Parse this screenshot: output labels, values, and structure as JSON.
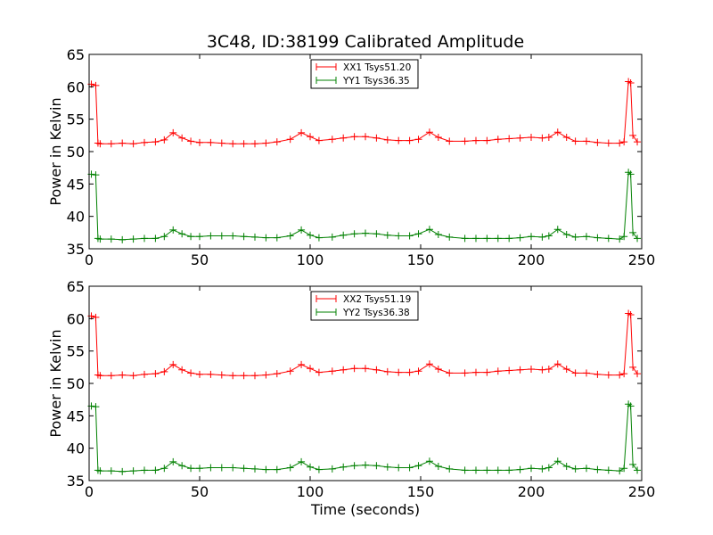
{
  "chart_data": [
    {
      "type": "line",
      "title": "3C48, ID:38199 Calibrated Amplitude",
      "xlabel": "",
      "ylabel": "Power in Kelvin",
      "xlim": [
        0,
        250
      ],
      "ylim": [
        35,
        65
      ],
      "xticks": [
        "0",
        "50",
        "100",
        "150",
        "200",
        "250"
      ],
      "yticks": [
        "35",
        "40",
        "45",
        "50",
        "55",
        "60",
        "65"
      ],
      "grid": false,
      "legend": "top-center",
      "series": [
        {
          "name": "XX1 Tsys51.20",
          "color": "#ff0000",
          "marker": "plus",
          "x": [
            1,
            3,
            4,
            5,
            10,
            15,
            20,
            25,
            30,
            34,
            38,
            42,
            46,
            50,
            55,
            60,
            65,
            70,
            75,
            80,
            85,
            91,
            96,
            100,
            104,
            110,
            115,
            120,
            125,
            130,
            135,
            140,
            145,
            149,
            154,
            158,
            163,
            170,
            175,
            180,
            185,
            190,
            195,
            200,
            205,
            208,
            212,
            216,
            220,
            225,
            230,
            235,
            240,
            242,
            244,
            245,
            246,
            248
          ],
          "y": [
            60.4,
            60.2,
            51.3,
            51.2,
            51.2,
            51.3,
            51.2,
            51.4,
            51.5,
            51.8,
            52.9,
            52.1,
            51.6,
            51.4,
            51.4,
            51.3,
            51.2,
            51.2,
            51.2,
            51.3,
            51.5,
            51.9,
            52.9,
            52.3,
            51.7,
            51.9,
            52.1,
            52.3,
            52.3,
            52.1,
            51.8,
            51.7,
            51.7,
            51.9,
            53.0,
            52.2,
            51.6,
            51.6,
            51.7,
            51.7,
            51.9,
            52.0,
            52.1,
            52.2,
            52.1,
            52.2,
            53.0,
            52.2,
            51.6,
            51.6,
            51.4,
            51.3,
            51.3,
            51.5,
            60.8,
            60.6,
            52.5,
            51.5
          ]
        },
        {
          "name": "YY1 Tsys36.35",
          "color": "#008000",
          "marker": "plus",
          "x": [
            1,
            3,
            4,
            5,
            10,
            15,
            20,
            25,
            30,
            34,
            38,
            42,
            46,
            50,
            55,
            60,
            65,
            70,
            75,
            80,
            85,
            91,
            96,
            100,
            104,
            110,
            115,
            120,
            125,
            130,
            135,
            140,
            145,
            149,
            154,
            158,
            163,
            170,
            175,
            180,
            185,
            190,
            195,
            200,
            205,
            208,
            212,
            216,
            220,
            225,
            230,
            235,
            240,
            242,
            244,
            245,
            246,
            248
          ],
          "y": [
            46.5,
            46.4,
            36.6,
            36.5,
            36.5,
            36.4,
            36.5,
            36.6,
            36.6,
            36.9,
            37.9,
            37.3,
            36.9,
            36.9,
            37.0,
            37.0,
            37.0,
            36.9,
            36.8,
            36.7,
            36.7,
            37.0,
            37.9,
            37.1,
            36.7,
            36.8,
            37.1,
            37.3,
            37.4,
            37.3,
            37.1,
            37.0,
            37.0,
            37.3,
            38.0,
            37.2,
            36.8,
            36.6,
            36.6,
            36.6,
            36.6,
            36.6,
            36.7,
            36.9,
            36.8,
            37.0,
            38.0,
            37.2,
            36.8,
            36.9,
            36.7,
            36.6,
            36.5,
            36.9,
            46.8,
            46.5,
            37.5,
            36.6
          ]
        }
      ]
    },
    {
      "type": "line",
      "title": "",
      "xlabel": "Time (seconds)",
      "ylabel": "Power in Kelvin",
      "xlim": [
        0,
        250
      ],
      "ylim": [
        35,
        65
      ],
      "xticks": [
        "0",
        "50",
        "100",
        "150",
        "200",
        "250"
      ],
      "yticks": [
        "35",
        "40",
        "45",
        "50",
        "55",
        "60",
        "65"
      ],
      "grid": false,
      "legend": "top-center",
      "series": [
        {
          "name": "XX2 Tsys51.19",
          "color": "#ff0000",
          "marker": "plus",
          "x": [
            1,
            3,
            4,
            5,
            10,
            15,
            20,
            25,
            30,
            34,
            38,
            42,
            46,
            50,
            55,
            60,
            65,
            70,
            75,
            80,
            85,
            91,
            96,
            100,
            104,
            110,
            115,
            120,
            125,
            130,
            135,
            140,
            145,
            149,
            154,
            158,
            163,
            170,
            175,
            180,
            185,
            190,
            195,
            200,
            205,
            208,
            212,
            216,
            220,
            225,
            230,
            235,
            240,
            242,
            244,
            245,
            246,
            248
          ],
          "y": [
            60.4,
            60.2,
            51.3,
            51.2,
            51.2,
            51.3,
            51.2,
            51.4,
            51.5,
            51.8,
            52.9,
            52.1,
            51.6,
            51.4,
            51.4,
            51.3,
            51.2,
            51.2,
            51.2,
            51.3,
            51.5,
            51.9,
            52.9,
            52.3,
            51.7,
            51.9,
            52.1,
            52.3,
            52.3,
            52.1,
            51.8,
            51.7,
            51.7,
            51.9,
            53.0,
            52.2,
            51.6,
            51.6,
            51.7,
            51.7,
            51.9,
            52.0,
            52.1,
            52.2,
            52.1,
            52.2,
            53.0,
            52.2,
            51.6,
            51.6,
            51.4,
            51.3,
            51.3,
            51.5,
            60.8,
            60.6,
            52.5,
            51.5
          ]
        },
        {
          "name": "YY2 Tsys36.38",
          "color": "#008000",
          "marker": "plus",
          "x": [
            1,
            3,
            4,
            5,
            10,
            15,
            20,
            25,
            30,
            34,
            38,
            42,
            46,
            50,
            55,
            60,
            65,
            70,
            75,
            80,
            85,
            91,
            96,
            100,
            104,
            110,
            115,
            120,
            125,
            130,
            135,
            140,
            145,
            149,
            154,
            158,
            163,
            170,
            175,
            180,
            185,
            190,
            195,
            200,
            205,
            208,
            212,
            216,
            220,
            225,
            230,
            235,
            240,
            242,
            244,
            245,
            246,
            248
          ],
          "y": [
            46.5,
            46.4,
            36.6,
            36.5,
            36.5,
            36.4,
            36.5,
            36.6,
            36.6,
            36.9,
            37.9,
            37.3,
            36.9,
            36.9,
            37.0,
            37.0,
            37.0,
            36.9,
            36.8,
            36.7,
            36.7,
            37.0,
            37.9,
            37.1,
            36.7,
            36.8,
            37.1,
            37.3,
            37.4,
            37.3,
            37.1,
            37.0,
            37.0,
            37.3,
            38.0,
            37.2,
            36.8,
            36.6,
            36.6,
            36.6,
            36.6,
            36.6,
            36.7,
            36.9,
            36.8,
            37.0,
            38.0,
            37.2,
            36.8,
            36.9,
            36.7,
            36.6,
            36.5,
            36.9,
            46.8,
            46.5,
            37.5,
            36.6
          ]
        }
      ]
    }
  ]
}
